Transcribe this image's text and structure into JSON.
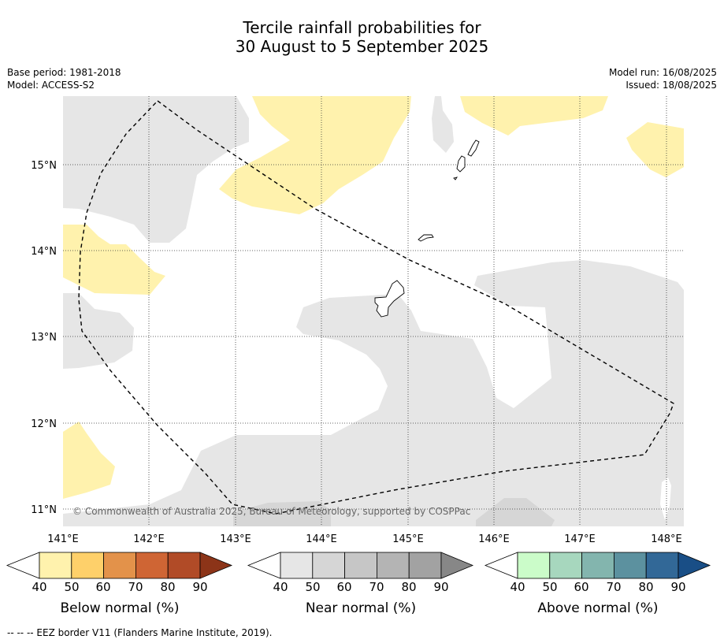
{
  "title_line1": "Tercile rainfall probabilities for",
  "title_line2": "30 August to 5 September 2025",
  "meta": {
    "base_period": "Base period: 1981-2018",
    "model": "Model: ACCESS-S2",
    "model_run": "Model run: 16/08/2025",
    "issued": "Issued: 18/08/2025"
  },
  "map": {
    "lon_labels": [
      "141°E",
      "142°E",
      "143°E",
      "144°E",
      "145°E",
      "146°E",
      "147°E",
      "148°E"
    ],
    "lat_labels": [
      "15°N",
      "14°N",
      "13°N",
      "12°N",
      "11°N"
    ],
    "copyright": "© Commonwealth of Australia 2025, Bureau of Meteorology, supported by COSPPac"
  },
  "colorbars": [
    {
      "label": "Below normal (%)",
      "ticks": [
        "40",
        "50",
        "60",
        "70",
        "80",
        "90"
      ],
      "colors": [
        "#fff2ad",
        "#fed06a",
        "#e3924a",
        "#cf6534",
        "#b14b27",
        "#8c3418"
      ]
    },
    {
      "label": "Near normal (%)",
      "ticks": [
        "40",
        "50",
        "60",
        "70",
        "80",
        "90"
      ],
      "colors": [
        "#e6e6e6",
        "#d6d6d6",
        "#c6c6c6",
        "#b4b4b4",
        "#a2a2a2",
        "#878787"
      ]
    },
    {
      "label": "Above normal (%)",
      "ticks": [
        "40",
        "50",
        "60",
        "70",
        "80",
        "90"
      ],
      "colors": [
        "#cbfcc9",
        "#a7d7be",
        "#83b5ae",
        "#5c919f",
        "#326897",
        "#194e86"
      ]
    }
  ],
  "footer": "--  --  -- EEZ border V11 (Flanders Marine Institute, 2019)."
}
